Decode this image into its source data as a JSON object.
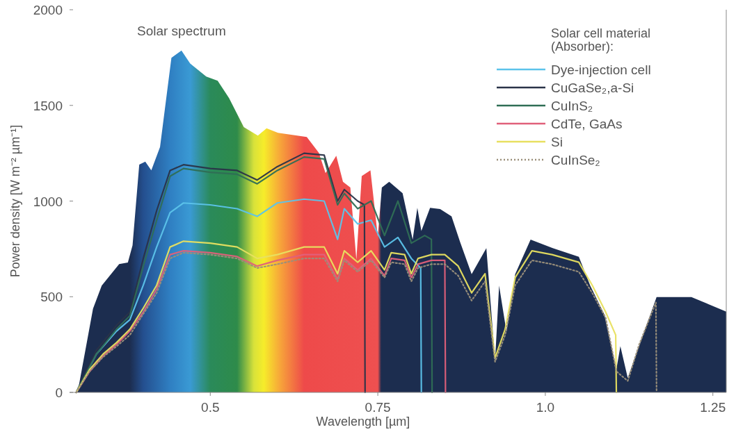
{
  "chart_data": {
    "type": "line",
    "xlabel": "Wavelength [µm]",
    "ylabel": "Power density [W m⁻² µm⁻¹]",
    "legend_title": "Solar cell material (Absorber):",
    "legend": "top right",
    "xlim": [
      0.29,
      1.27
    ],
    "xticks": [
      0.5,
      0.75,
      {
        "value": 1,
        "label": "1.0"
      },
      1.25
    ],
    "ylim": [
      0,
      2000
    ],
    "yticks": [
      0,
      500,
      1000,
      1500,
      2000
    ],
    "line_style": "solid",
    "series": [
      {
        "name": "Solar spectrum",
        "type": "area",
        "color": "#1c2d4f",
        "x": [
          0.302,
          0.325,
          0.338,
          0.364,
          0.377,
          0.384,
          0.394,
          0.403,
          0.412,
          0.425,
          0.442,
          0.457,
          0.47,
          0.494,
          0.511,
          0.528,
          0.55,
          0.571,
          0.584,
          0.601,
          0.644,
          0.662,
          0.672,
          0.688,
          0.698,
          0.709,
          0.718,
          0.726,
          0.739,
          0.75,
          0.756,
          0.767,
          0.787,
          0.802,
          0.809,
          0.815,
          0.828,
          0.843,
          0.86,
          0.873,
          0.89,
          0.912,
          0.925,
          0.931,
          0.942,
          0.955,
          0.978,
          1.011,
          1.05,
          1.067,
          1.088,
          1.106,
          1.112,
          1.123,
          1.166,
          1.218,
          1.27
        ],
        "values": [
          0,
          437,
          558,
          671,
          679,
          769,
          1191,
          1206,
          1161,
          1282,
          1749,
          1787,
          1719,
          1651,
          1629,
          1538,
          1387,
          1342,
          1380,
          1357,
          1335,
          1252,
          1146,
          1237,
          1101,
          1071,
          694,
          1131,
          1161,
          814,
          1071,
          1101,
          1041,
          799,
          965,
          844,
          965,
          958,
          920,
          784,
          618,
          754,
          166,
          558,
          317,
          618,
          799,
          754,
          709,
          558,
          407,
          121,
          241,
          75,
          498,
          498,
          422
        ]
      },
      {
        "name": "Dye-injection cell",
        "color": "#5cc3ea",
        "x": [
          0.3,
          0.33,
          0.36,
          0.38,
          0.4,
          0.42,
          0.44,
          0.46,
          0.5,
          0.54,
          0.57,
          0.6,
          0.64,
          0.67,
          0.69,
          0.7,
          0.72,
          0.74,
          0.76,
          0.78,
          0.8,
          0.814,
          0.815
        ],
        "values": [
          0,
          200,
          320,
          380,
          560,
          760,
          940,
          990,
          980,
          960,
          920,
          990,
          1010,
          1000,
          800,
          960,
          880,
          900,
          760,
          810,
          700,
          650,
          0
        ]
      },
      {
        "name": "CuGaSe₂,a-Si",
        "color": "#2a3348",
        "x": [
          0.3,
          0.33,
          0.36,
          0.38,
          0.4,
          0.42,
          0.44,
          0.46,
          0.5,
          0.54,
          0.57,
          0.6,
          0.64,
          0.67,
          0.69,
          0.7,
          0.72,
          0.73,
          0.731
        ],
        "values": [
          0,
          220,
          350,
          420,
          700,
          950,
          1160,
          1190,
          1170,
          1160,
          1110,
          1180,
          1250,
          1240,
          1000,
          1060,
          1000,
          980,
          0
        ]
      },
      {
        "name": "CuInS₂",
        "color": "#2f6e55",
        "x": [
          0.3,
          0.33,
          0.36,
          0.38,
          0.4,
          0.42,
          0.44,
          0.46,
          0.5,
          0.54,
          0.57,
          0.6,
          0.64,
          0.67,
          0.69,
          0.7,
          0.72,
          0.74,
          0.76,
          0.78,
          0.8,
          0.82,
          0.83,
          0.831
        ],
        "values": [
          0,
          200,
          330,
          400,
          660,
          900,
          1130,
          1170,
          1150,
          1140,
          1090,
          1160,
          1230,
          1220,
          980,
          1040,
          960,
          1000,
          820,
          1000,
          780,
          820,
          800,
          0
        ]
      },
      {
        "name": "CdTe, GaAs",
        "color": "#e0607a",
        "x": [
          0.3,
          0.32,
          0.34,
          0.36,
          0.38,
          0.4,
          0.42,
          0.44,
          0.46,
          0.5,
          0.54,
          0.57,
          0.6,
          0.64,
          0.67,
          0.69,
          0.7,
          0.72,
          0.74,
          0.76,
          0.77,
          0.79,
          0.8,
          0.81,
          0.83,
          0.85,
          0.851
        ],
        "values": [
          0,
          110,
          190,
          250,
          320,
          420,
          540,
          720,
          740,
          730,
          710,
          660,
          690,
          720,
          720,
          590,
          700,
          640,
          700,
          610,
          700,
          690,
          600,
          670,
          690,
          690,
          0
        ]
      },
      {
        "name": "Si",
        "color": "#e8e060",
        "x": [
          0.3,
          0.32,
          0.34,
          0.36,
          0.38,
          0.4,
          0.42,
          0.44,
          0.46,
          0.5,
          0.54,
          0.57,
          0.6,
          0.64,
          0.67,
          0.69,
          0.7,
          0.72,
          0.74,
          0.76,
          0.77,
          0.79,
          0.8,
          0.81,
          0.83,
          0.85,
          0.87,
          0.89,
          0.91,
          0.925,
          0.94,
          0.955,
          0.98,
          1.01,
          1.05,
          1.07,
          1.09,
          1.105,
          1.106
        ],
        "values": [
          0,
          120,
          200,
          260,
          330,
          440,
          560,
          760,
          790,
          780,
          760,
          700,
          720,
          760,
          760,
          620,
          740,
          680,
          740,
          640,
          730,
          720,
          620,
          700,
          720,
          720,
          660,
          520,
          620,
          180,
          330,
          600,
          740,
          720,
          680,
          560,
          420,
          300,
          0
        ]
      },
      {
        "name": "CuInSe₂",
        "color": "#9a8f7a",
        "line_style": "dotted",
        "x": [
          0.3,
          0.32,
          0.34,
          0.36,
          0.38,
          0.4,
          0.42,
          0.44,
          0.46,
          0.5,
          0.54,
          0.57,
          0.6,
          0.64,
          0.67,
          0.69,
          0.7,
          0.72,
          0.74,
          0.76,
          0.77,
          0.79,
          0.8,
          0.81,
          0.83,
          0.85,
          0.87,
          0.89,
          0.91,
          0.925,
          0.94,
          0.955,
          0.98,
          1.01,
          1.05,
          1.07,
          1.09,
          1.106,
          1.123,
          1.14,
          1.165,
          1.166
        ],
        "values": [
          0,
          110,
          185,
          240,
          300,
          410,
          520,
          700,
          730,
          720,
          700,
          650,
          670,
          700,
          700,
          580,
          690,
          630,
          690,
          600,
          680,
          670,
          580,
          650,
          670,
          670,
          610,
          480,
          580,
          160,
          300,
          560,
          690,
          670,
          630,
          520,
          390,
          110,
          60,
          250,
          470,
          0
        ]
      }
    ]
  }
}
